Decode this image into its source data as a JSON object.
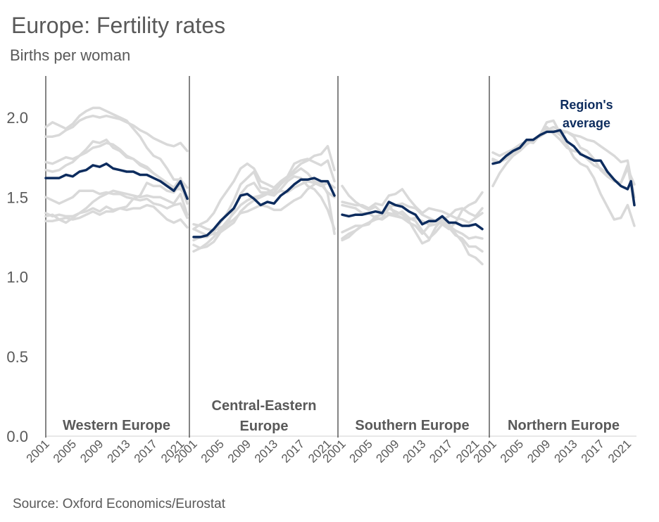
{
  "chart_data": {
    "type": "line",
    "title": "Europe: Fertility rates",
    "subtitle": "Births per woman",
    "source": "Source: Oxford Economics/Eurostat",
    "ylim": [
      0,
      2.2
    ],
    "yticks": [
      "0.0",
      "0.5",
      "1.0",
      "1.5",
      "2.0"
    ],
    "ytick_values": [
      0,
      0.5,
      1.0,
      1.5,
      2.0
    ],
    "x": [
      2001,
      2002,
      2003,
      2004,
      2005,
      2006,
      2007,
      2008,
      2009,
      2010,
      2011,
      2012,
      2013,
      2014,
      2015,
      2016,
      2017,
      2018,
      2019,
      2020,
      2021,
      2022
    ],
    "xtick_labels": [
      "2001",
      "2005",
      "2009",
      "2013",
      "2017",
      "2021"
    ],
    "average_label": "Region's average",
    "colors": {
      "average": "#0d2c5e",
      "country": "#d9d9d9",
      "text": "#595959",
      "axis": "#333333"
    },
    "panels": [
      {
        "name": "Western Europe",
        "label_lines": [
          "Western Europe"
        ],
        "average": [
          1.62,
          1.62,
          1.62,
          1.64,
          1.63,
          1.66,
          1.67,
          1.7,
          1.69,
          1.71,
          1.68,
          1.67,
          1.66,
          1.66,
          1.64,
          1.64,
          1.62,
          1.6,
          1.57,
          1.54,
          1.6,
          1.49
        ],
        "countries": [
          [
            1.88,
            1.88,
            1.89,
            1.92,
            1.94,
            1.98,
            2.0,
            2.01,
            2.0,
            2.01,
            2.0,
            1.99,
            1.97,
            1.95,
            1.92,
            1.9,
            1.87,
            1.85,
            1.83,
            1.82,
            1.84,
            1.79
          ],
          [
            1.94,
            1.97,
            1.95,
            1.93,
            1.96,
            2.01,
            2.04,
            2.06,
            2.06,
            2.04,
            2.02,
            2.0,
            1.98,
            1.93,
            1.88,
            1.81,
            1.76,
            1.74,
            1.68,
            1.61,
            1.61,
            1.56
          ],
          [
            1.67,
            1.66,
            1.67,
            1.7,
            1.72,
            1.76,
            1.8,
            1.85,
            1.84,
            1.86,
            1.81,
            1.79,
            1.75,
            1.74,
            1.7,
            1.68,
            1.65,
            1.62,
            1.59,
            1.56,
            1.62,
            1.49
          ],
          [
            1.72,
            1.71,
            1.73,
            1.75,
            1.74,
            1.76,
            1.78,
            1.81,
            1.82,
            1.84,
            1.83,
            1.8,
            1.76,
            1.74,
            1.71,
            1.69,
            1.65,
            1.62,
            1.59,
            1.55,
            1.55,
            1.5
          ],
          [
            1.38,
            1.39,
            1.36,
            1.37,
            1.36,
            1.37,
            1.39,
            1.41,
            1.39,
            1.41,
            1.41,
            1.43,
            1.44,
            1.49,
            1.51,
            1.59,
            1.57,
            1.57,
            1.54,
            1.53,
            1.58,
            1.46
          ],
          [
            1.35,
            1.35,
            1.36,
            1.34,
            1.37,
            1.4,
            1.43,
            1.47,
            1.5,
            1.52,
            1.54,
            1.53,
            1.52,
            1.51,
            1.5,
            1.51,
            1.5,
            1.5,
            1.48,
            1.46,
            1.52,
            1.39
          ],
          [
            1.5,
            1.48,
            1.46,
            1.48,
            1.5,
            1.54,
            1.54,
            1.54,
            1.52,
            1.53,
            1.52,
            1.52,
            1.5,
            1.49,
            1.48,
            1.49,
            1.46,
            1.45,
            1.43,
            1.45,
            1.46,
            1.37
          ],
          [
            1.4,
            1.38,
            1.39,
            1.38,
            1.38,
            1.4,
            1.41,
            1.43,
            1.41,
            1.44,
            1.42,
            1.43,
            1.42,
            1.43,
            1.43,
            1.45,
            1.44,
            1.4,
            1.36,
            1.34,
            1.36,
            1.31
          ]
        ]
      },
      {
        "name": "Central-Eastern Europe",
        "label_lines": [
          "Central-Eastern",
          "Europe"
        ],
        "average": [
          1.25,
          1.25,
          1.26,
          1.3,
          1.35,
          1.39,
          1.43,
          1.51,
          1.52,
          1.49,
          1.45,
          1.47,
          1.46,
          1.51,
          1.54,
          1.58,
          1.61,
          1.61,
          1.62,
          1.6,
          1.6,
          1.51
        ],
        "countries": [
          [
            1.2,
            1.18,
            1.19,
            1.22,
            1.28,
            1.33,
            1.42,
            1.52,
            1.57,
            1.59,
            1.53,
            1.53,
            1.53,
            1.58,
            1.62,
            1.67,
            1.71,
            1.73,
            1.76,
            1.77,
            1.82,
            1.67
          ],
          [
            1.3,
            1.33,
            1.35,
            1.4,
            1.48,
            1.54,
            1.6,
            1.68,
            1.71,
            1.68,
            1.6,
            1.58,
            1.56,
            1.6,
            1.63,
            1.71,
            1.73,
            1.74,
            1.72,
            1.7,
            1.73,
            1.6
          ],
          [
            1.23,
            1.25,
            1.25,
            1.28,
            1.34,
            1.4,
            1.48,
            1.58,
            1.62,
            1.66,
            1.56,
            1.55,
            1.52,
            1.54,
            1.53,
            1.56,
            1.58,
            1.6,
            1.59,
            1.57,
            1.59,
            1.56
          ],
          [
            1.16,
            1.18,
            1.21,
            1.25,
            1.3,
            1.35,
            1.4,
            1.45,
            1.48,
            1.5,
            1.51,
            1.53,
            1.55,
            1.59,
            1.62,
            1.65,
            1.68,
            1.65,
            1.6,
            1.58,
            1.53,
            1.5
          ],
          [
            1.3,
            1.28,
            1.26,
            1.27,
            1.28,
            1.31,
            1.34,
            1.41,
            1.45,
            1.48,
            1.5,
            1.52,
            1.51,
            1.55,
            1.6,
            1.63,
            1.62,
            1.57,
            1.55,
            1.5,
            1.42,
            1.3
          ],
          [
            1.33,
            1.32,
            1.3,
            1.29,
            1.31,
            1.33,
            1.36,
            1.4,
            1.41,
            1.43,
            1.45,
            1.44,
            1.42,
            1.42,
            1.45,
            1.48,
            1.5,
            1.55,
            1.58,
            1.6,
            1.52,
            1.27
          ]
        ]
      },
      {
        "name": "Southern Europe",
        "label_lines": [
          "Southern Europe"
        ],
        "average": [
          1.39,
          1.38,
          1.39,
          1.39,
          1.4,
          1.41,
          1.4,
          1.47,
          1.45,
          1.44,
          1.41,
          1.39,
          1.33,
          1.35,
          1.35,
          1.38,
          1.34,
          1.34,
          1.32,
          1.32,
          1.33,
          1.3
        ],
        "countries": [
          [
            1.57,
            1.51,
            1.47,
            1.44,
            1.42,
            1.44,
            1.4,
            1.4,
            1.39,
            1.41,
            1.37,
            1.35,
            1.29,
            1.24,
            1.28,
            1.33,
            1.3,
            1.34,
            1.42,
            1.45,
            1.47,
            1.53
          ],
          [
            1.47,
            1.46,
            1.45,
            1.45,
            1.43,
            1.46,
            1.45,
            1.51,
            1.52,
            1.55,
            1.49,
            1.44,
            1.4,
            1.43,
            1.42,
            1.41,
            1.39,
            1.37,
            1.36,
            1.34,
            1.37,
            1.4
          ],
          [
            1.24,
            1.27,
            1.29,
            1.32,
            1.34,
            1.37,
            1.4,
            1.44,
            1.45,
            1.46,
            1.44,
            1.43,
            1.39,
            1.37,
            1.35,
            1.34,
            1.32,
            1.29,
            1.27,
            1.24,
            1.25,
            1.24
          ],
          [
            1.23,
            1.25,
            1.29,
            1.32,
            1.33,
            1.38,
            1.39,
            1.45,
            1.39,
            1.37,
            1.34,
            1.32,
            1.27,
            1.32,
            1.33,
            1.34,
            1.31,
            1.26,
            1.24,
            1.19,
            1.19,
            1.16
          ],
          [
            1.45,
            1.44,
            1.43,
            1.4,
            1.4,
            1.37,
            1.36,
            1.39,
            1.38,
            1.37,
            1.35,
            1.28,
            1.21,
            1.23,
            1.31,
            1.36,
            1.38,
            1.42,
            1.43,
            1.4,
            1.38,
            1.43
          ],
          [
            1.28,
            1.3,
            1.32,
            1.32,
            1.34,
            1.36,
            1.37,
            1.43,
            1.41,
            1.39,
            1.36,
            1.37,
            1.35,
            1.33,
            1.35,
            1.36,
            1.33,
            1.27,
            1.22,
            1.14,
            1.12,
            1.08
          ]
        ]
      },
      {
        "name": "Northern Europe",
        "label_lines": [
          "Northern Europe"
        ],
        "average": [
          1.71,
          1.72,
          1.76,
          1.79,
          1.81,
          1.86,
          1.86,
          1.89,
          1.91,
          1.91,
          1.92,
          1.85,
          1.82,
          1.77,
          1.75,
          1.73,
          1.73,
          1.66,
          1.61,
          1.57,
          1.55,
          1.6,
          1.45
        ],
        "x_override": [
          2001,
          2002,
          2003,
          2004,
          2005,
          2006,
          2007,
          2008,
          2009,
          2010,
          2011,
          2012,
          2013,
          2014,
          2015,
          2016,
          2017,
          2018,
          2019,
          2020,
          2021,
          2021.5,
          2022
        ],
        "countries": [
          [
            1.74,
            1.72,
            1.74,
            1.78,
            1.8,
            1.84,
            1.85,
            1.89,
            1.92,
            1.94,
            1.92,
            1.91,
            1.89,
            1.88,
            1.86,
            1.85,
            1.82,
            1.79,
            1.76,
            1.72,
            1.73,
            1.5
          ],
          [
            1.78,
            1.76,
            1.78,
            1.8,
            1.83,
            1.85,
            1.85,
            1.89,
            1.97,
            1.98,
            1.9,
            1.91,
            1.88,
            1.81,
            1.79,
            1.74,
            1.67,
            1.63,
            1.6,
            1.59,
            1.68,
            1.58
          ],
          [
            1.57,
            1.65,
            1.71,
            1.76,
            1.79,
            1.83,
            1.86,
            1.88,
            1.91,
            1.92,
            1.89,
            1.83,
            1.75,
            1.71,
            1.69,
            1.62,
            1.52,
            1.44,
            1.36,
            1.37,
            1.45,
            1.32
          ],
          [
            1.73,
            1.72,
            1.76,
            1.79,
            1.8,
            1.85,
            1.84,
            1.89,
            1.94,
            1.9,
            1.86,
            1.81,
            1.79,
            1.78,
            1.74,
            1.7,
            1.68,
            1.65,
            1.6,
            1.59,
            1.7,
            1.45
          ]
        ]
      }
    ]
  }
}
